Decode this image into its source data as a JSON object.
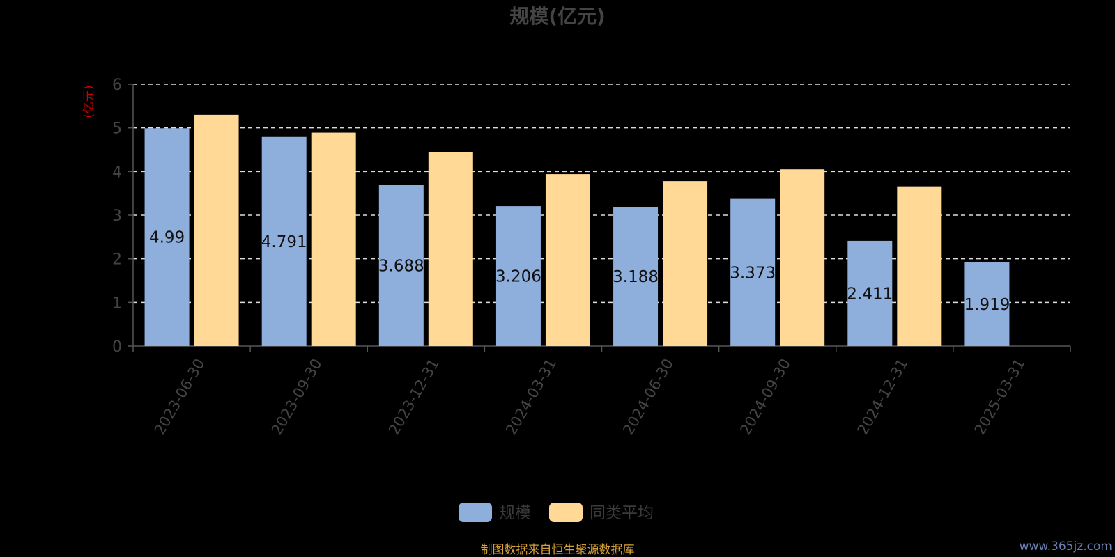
{
  "chart_data": {
    "type": "bar",
    "title": "规模(亿元)",
    "ylabel": "(亿元)",
    "ylim": [
      0,
      6
    ],
    "yticks": [
      0,
      1,
      2,
      3,
      4,
      5,
      6
    ],
    "grid": true,
    "legend_position": "bottom",
    "categories": [
      "2023-06-30",
      "2023-09-30",
      "2023-12-31",
      "2024-03-31",
      "2024-06-30",
      "2024-09-30",
      "2024-12-31",
      "2025-03-31"
    ],
    "series": [
      {
        "name": "规模",
        "color": "#8eaedc",
        "values": [
          4.99,
          4.791,
          3.688,
          3.206,
          3.188,
          3.373,
          2.411,
          1.919
        ],
        "labels": [
          "4.99",
          "4.791",
          "3.688",
          "3.206",
          "3.188",
          "3.373",
          "2.411",
          "1.919"
        ]
      },
      {
        "name": "同类平均",
        "color": "#ffd995",
        "values": [
          5.3,
          4.89,
          4.44,
          3.94,
          3.78,
          4.05,
          3.66,
          null
        ]
      }
    ]
  },
  "footer": {
    "source": "制图数据来自恒生聚源数据库",
    "watermark": "www.365jz.com"
  },
  "colors": {
    "background": "#000000",
    "grid": "#dddddd",
    "axis": "#555555",
    "unit_label": "#cc0000",
    "source_text": "#d4a03a"
  }
}
